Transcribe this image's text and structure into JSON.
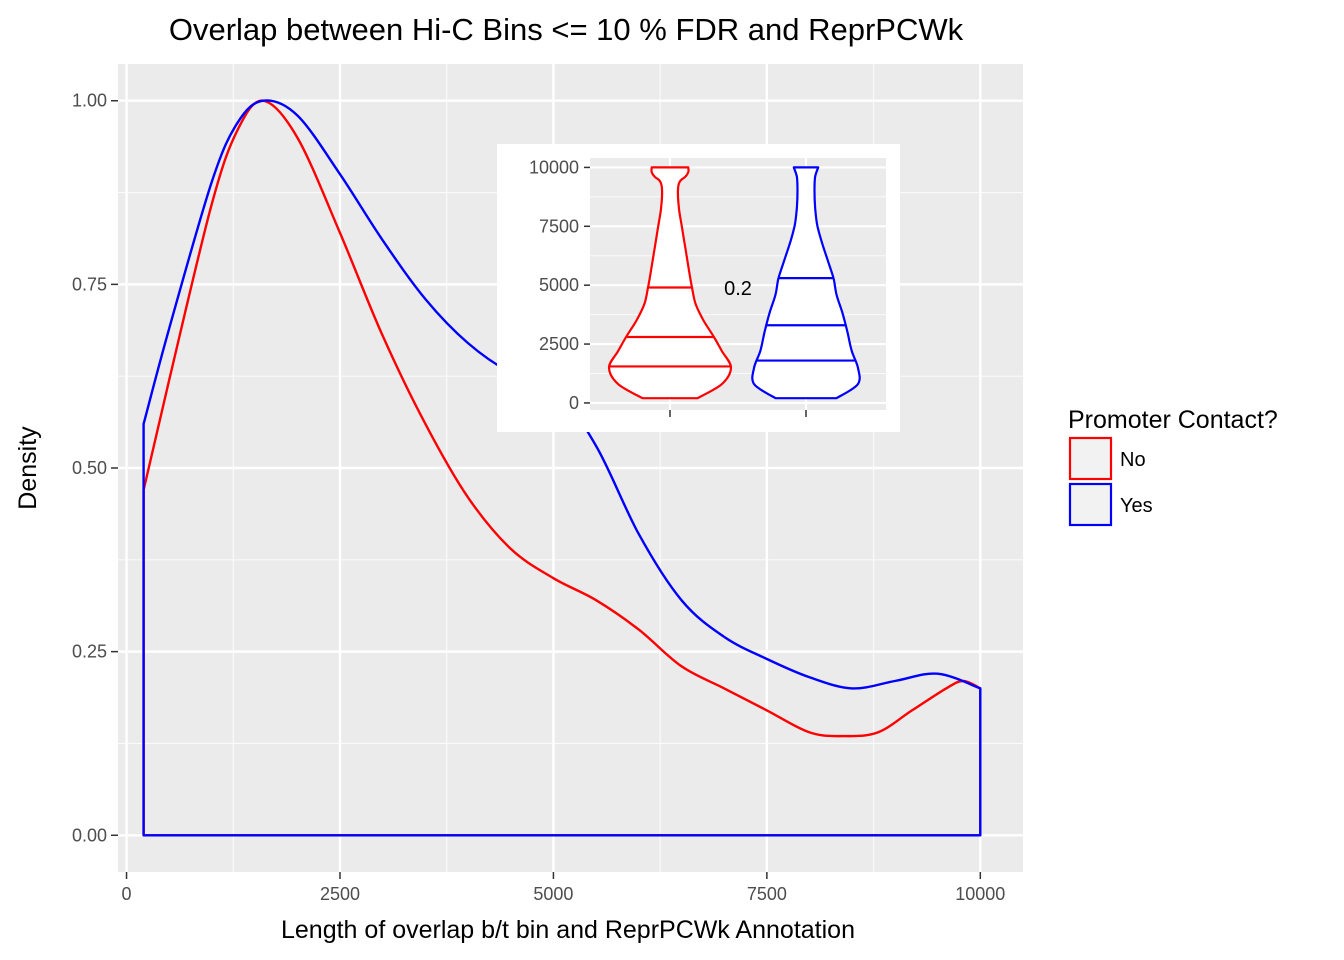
{
  "chart_data": [
    {
      "type": "area",
      "title": "Overlap between Hi-C Bins <= 10 % FDR and ReprPCWk",
      "xlabel": "Length of overlap b/t bin and ReprPCWk Annotation",
      "ylabel": "Density",
      "xlim": [
        -100,
        10500
      ],
      "ylim": [
        -0.05,
        1.05
      ],
      "x_ticks": [
        0,
        2500,
        5000,
        7500,
        10000
      ],
      "x_tick_labels": [
        "0",
        "2500",
        "5000",
        "7500",
        "10000"
      ],
      "y_ticks": [
        0,
        0.25,
        0.5,
        0.75,
        1
      ],
      "y_tick_labels": [
        "0.00",
        "0.25",
        "0.50",
        "0.75",
        "1.00"
      ],
      "grid": true,
      "legend": {
        "title": "Promoter Contact?",
        "position": "right"
      },
      "series": [
        {
          "name": "No",
          "color": "#ff0000",
          "x": [
            200,
            500,
            1000,
            1300,
            1600,
            2000,
            2500,
            3000,
            3500,
            4000,
            4500,
            5000,
            5500,
            6000,
            6500,
            7000,
            7500,
            8000,
            8400,
            8800,
            9200,
            9600,
            9800,
            10000
          ],
          "y": [
            0.47,
            0.62,
            0.86,
            0.96,
            1.0,
            0.95,
            0.82,
            0.68,
            0.56,
            0.46,
            0.39,
            0.35,
            0.32,
            0.28,
            0.23,
            0.2,
            0.17,
            0.14,
            0.135,
            0.14,
            0.17,
            0.2,
            0.21,
            0.2
          ]
        },
        {
          "name": "Yes",
          "color": "#0000ff",
          "x": [
            200,
            500,
            1000,
            1300,
            1600,
            2000,
            2500,
            3000,
            3500,
            4000,
            4500,
            5000,
            5500,
            6000,
            6500,
            7000,
            7500,
            8000,
            8500,
            9000,
            9500,
            10000
          ],
          "y": [
            0.56,
            0.69,
            0.89,
            0.97,
            1.0,
            0.98,
            0.9,
            0.81,
            0.73,
            0.67,
            0.63,
            0.61,
            0.53,
            0.41,
            0.32,
            0.27,
            0.24,
            0.215,
            0.2,
            0.21,
            0.22,
            0.2
          ]
        }
      ]
    },
    {
      "type": "violin",
      "title": "",
      "ylim": [
        -300,
        10400
      ],
      "y_ticks": [
        0,
        2500,
        5000,
        7500,
        10000
      ],
      "y_tick_labels": [
        "0",
        "2500",
        "5000",
        "7500",
        "10000"
      ],
      "annotation": "0.2",
      "grid": true,
      "series": [
        {
          "name": "No",
          "color": "#ff0000",
          "quantiles": [
            1550,
            2800,
            4900
          ],
          "profile_y": [
            200,
            800,
            1500,
            2200,
            2800,
            3500,
            4200,
            4900,
            5800,
            6600,
            7400,
            8200,
            9000,
            9400,
            9600,
            9800,
            10000
          ],
          "profile_halfwidth": [
            0.45,
            0.85,
            1.0,
            0.85,
            0.72,
            0.55,
            0.42,
            0.36,
            0.3,
            0.25,
            0.2,
            0.15,
            0.13,
            0.16,
            0.25,
            0.3,
            0.3
          ]
        },
        {
          "name": "Yes",
          "color": "#0000ff",
          "quantiles": [
            1800,
            3300,
            5300
          ],
          "profile_y": [
            200,
            800,
            1500,
            2200,
            3000,
            3800,
            4600,
            5300,
            6100,
            6900,
            7600,
            8300,
            9000,
            9600,
            10000
          ],
          "profile_halfwidth": [
            0.5,
            0.85,
            0.85,
            0.75,
            0.68,
            0.6,
            0.5,
            0.45,
            0.35,
            0.25,
            0.18,
            0.15,
            0.14,
            0.15,
            0.2
          ]
        }
      ]
    }
  ]
}
